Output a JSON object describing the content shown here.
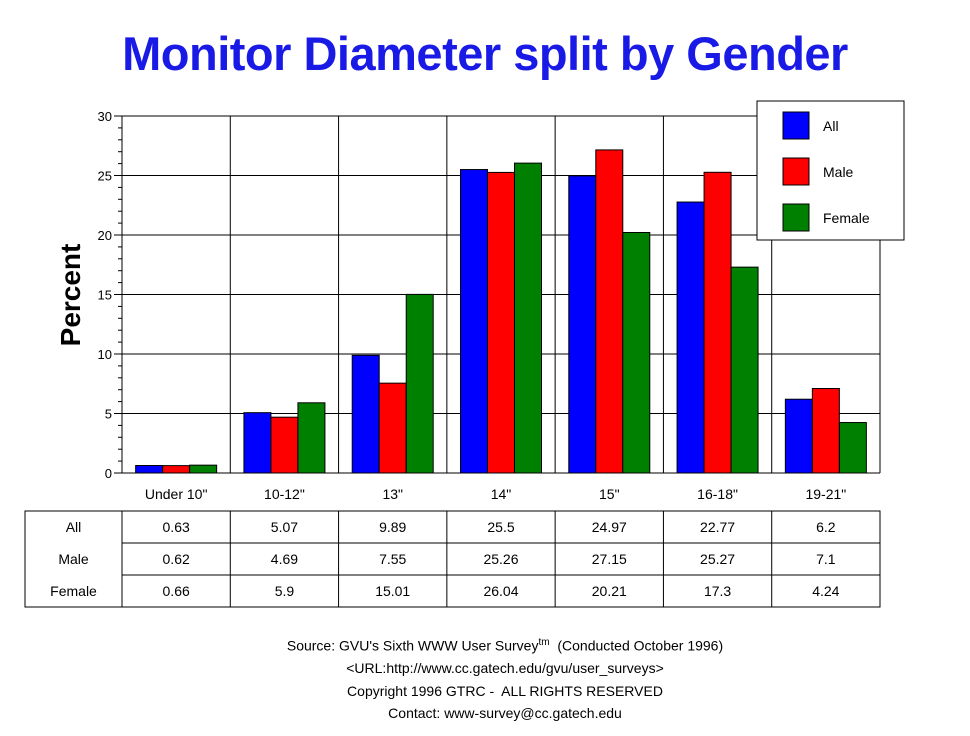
{
  "chart_data": {
    "type": "bar",
    "title": "Monitor Diameter split by Gender",
    "ylabel": "Percent",
    "ylim": [
      0,
      30
    ],
    "yticks": [
      0,
      5,
      10,
      15,
      20,
      25,
      30
    ],
    "categories": [
      "Under 10\"",
      "10-12\"",
      "13\"",
      "14\"",
      "15\"",
      "16-18\"",
      "19-21\""
    ],
    "series": [
      {
        "name": "All",
        "color": "#0000ff",
        "values": [
          0.63,
          5.07,
          9.89,
          25.5,
          24.97,
          22.77,
          6.2
        ]
      },
      {
        "name": "Male",
        "color": "#ff0000",
        "values": [
          0.62,
          4.69,
          7.55,
          25.26,
          27.15,
          25.27,
          7.1
        ]
      },
      {
        "name": "Female",
        "color": "#008000",
        "values": [
          0.66,
          5.9,
          15.01,
          26.04,
          20.21,
          17.3,
          4.24
        ]
      }
    ],
    "grid": true,
    "legend": "top-right",
    "table": [
      [
        "0.63",
        "5.07",
        "9.89",
        "25.5",
        "24.97",
        "22.77",
        "6.2"
      ],
      [
        "0.62",
        "4.69",
        "7.55",
        "25.26",
        "27.15",
        "25.27",
        "7.1"
      ],
      [
        "0.66",
        "5.9",
        "15.01",
        "26.04",
        "20.21",
        "17.3",
        "4.24"
      ]
    ]
  },
  "footer": {
    "source_prefix": "Source: GVU's Sixth WWW User Survey",
    "tm": "tm",
    "source_suffix": "  (Conducted October 1996)",
    "url": "<URL:http://www.cc.gatech.edu/gvu/user_surveys>",
    "copyright": "Copyright 1996 GTRC -  ALL RIGHTS RESERVED",
    "contact": "Contact: www-survey@cc.gatech.edu"
  }
}
